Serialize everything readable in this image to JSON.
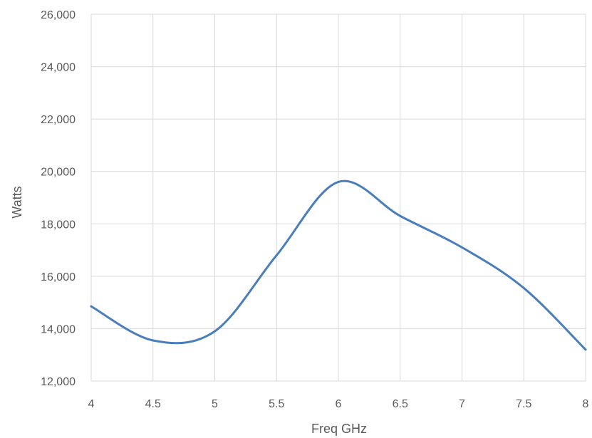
{
  "chart_data": {
    "type": "line",
    "title": "",
    "xlabel": "Freq GHz",
    "ylabel": "Watts",
    "xlim": [
      4,
      8
    ],
    "ylim": [
      12000,
      26000
    ],
    "grid": "vertical and horizontal",
    "legend": "none",
    "x_ticks": [
      "4",
      "4.5",
      "5",
      "5.5",
      "6",
      "6.5",
      "7",
      "7.5",
      "8"
    ],
    "y_ticks": [
      "12,000",
      "14,000",
      "16,000",
      "18,000",
      "20,000",
      "22,000",
      "24,000",
      "26,000"
    ],
    "series": [
      {
        "color": "#4a7ebb",
        "x": [
          4,
          4.5,
          5,
          5.5,
          6,
          6.5,
          7,
          7.5,
          8
        ],
        "y": [
          14850,
          13550,
          13900,
          16800,
          19600,
          18300,
          17100,
          15550,
          13200
        ]
      }
    ]
  }
}
